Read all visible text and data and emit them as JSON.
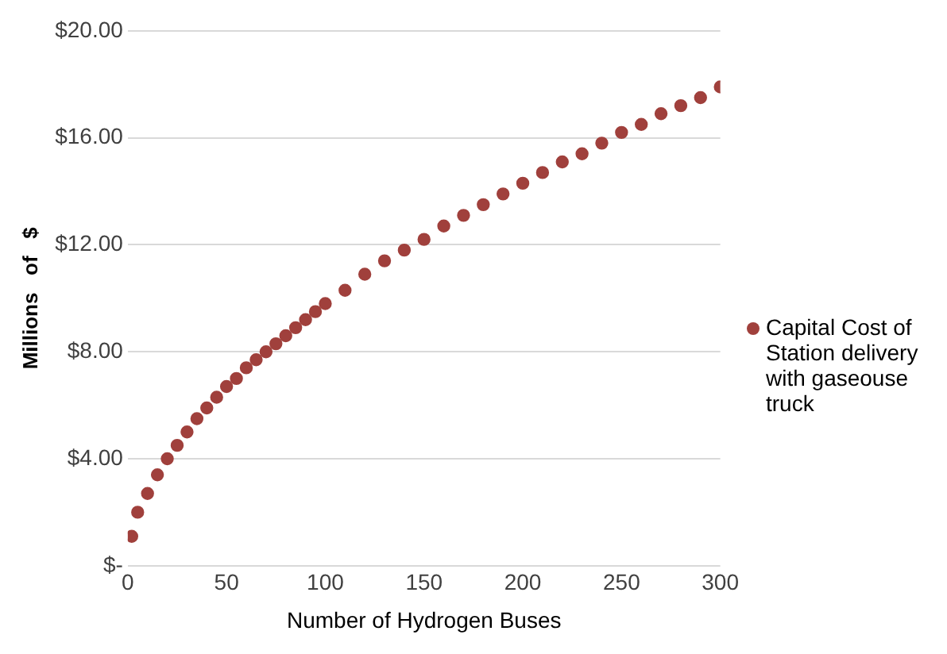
{
  "chart_data": {
    "type": "scatter",
    "xlabel": "Number of Hydrogen Buses",
    "ylabel": "Millions   of   $",
    "xlim": [
      0,
      300
    ],
    "xticks": [
      0,
      50,
      100,
      150,
      200,
      250,
      300
    ],
    "ylim": [
      0,
      20
    ],
    "yticks": [
      {
        "value": 0,
        "label": "$-"
      },
      {
        "value": 4,
        "label": "$4.00"
      },
      {
        "value": 8,
        "label": "$8.00"
      },
      {
        "value": 12,
        "label": "$12.00"
      },
      {
        "value": 16,
        "label": "$16.00"
      },
      {
        "value": 20,
        "label": "$20.00"
      }
    ],
    "grid": "y",
    "legend": "right",
    "marker": "circle",
    "series": [
      {
        "name": "Capital Cost of Station delivery with gaseouse truck",
        "color": "#a0403c",
        "x": [
          2,
          5,
          10,
          15,
          20,
          25,
          30,
          35,
          40,
          45,
          50,
          55,
          60,
          65,
          70,
          75,
          80,
          85,
          90,
          95,
          100,
          110,
          120,
          130,
          140,
          150,
          160,
          170,
          180,
          190,
          200,
          210,
          220,
          230,
          240,
          250,
          260,
          270,
          280,
          290,
          300
        ],
        "values": [
          1.1,
          2.0,
          2.7,
          3.4,
          4.0,
          4.5,
          5.0,
          5.5,
          5.9,
          6.3,
          6.7,
          7.0,
          7.4,
          7.7,
          8.0,
          8.3,
          8.6,
          8.9,
          9.2,
          9.5,
          9.8,
          10.3,
          10.9,
          11.4,
          11.8,
          12.2,
          12.7,
          13.1,
          13.5,
          13.9,
          14.3,
          14.7,
          15.1,
          15.4,
          15.8,
          16.2,
          16.5,
          16.9,
          17.2,
          17.5,
          17.9
        ]
      }
    ]
  }
}
